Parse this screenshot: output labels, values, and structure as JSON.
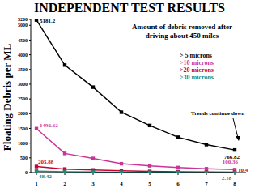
{
  "chart_data": {
    "type": "line",
    "title": "INDEPENDENT TEST RESULTS",
    "y_label": "Floating Debris per ML",
    "annotation": [
      "Amount of debris removed after",
      "driving about 450 miles"
    ],
    "arrow_annotation": "Trends continue down",
    "x": [
      1,
      2,
      3,
      4,
      5,
      6,
      7,
      8
    ],
    "xlim": [
      0.8,
      8.4
    ],
    "xticks": [
      1,
      2,
      3,
      4,
      5,
      6,
      7,
      8
    ],
    "ylim": [
      0,
      5200
    ],
    "yticks": [
      0,
      500,
      1000,
      1500,
      2000,
      2500,
      3000,
      3500,
      4000,
      4500,
      5000,
      5200
    ],
    "grid": false,
    "legend": "top-right",
    "series": [
      {
        "name": "> 5 microns",
        "color": "#000000",
        "marker": "square",
        "values": [
          5181.2,
          3650,
          2900,
          2050,
          1600,
          1200,
          950,
          766.82
        ],
        "value_labels": [
          "5181.2",
          null,
          null,
          null,
          null,
          null,
          null,
          "766.82"
        ]
      },
      {
        "name": ">10 microns",
        "color": "#cc3399",
        "marker": "square",
        "values": [
          1492.62,
          650,
          480,
          300,
          230,
          170,
          130,
          100.36
        ],
        "value_labels": [
          "1492.62",
          null,
          null,
          null,
          null,
          null,
          null,
          "100.36"
        ]
      },
      {
        "name": ">20 microns",
        "color": "#cc0033",
        "marker": "square",
        "values": [
          205.88,
          120,
          90,
          60,
          40,
          30,
          20,
          10.4
        ],
        "value_labels": [
          "205.88",
          null,
          null,
          null,
          null,
          null,
          null,
          "10.4"
        ]
      },
      {
        "name": ">30 microns",
        "color": "#1a8a7a",
        "marker": "square",
        "values": [
          48.42,
          30,
          20,
          10,
          8,
          5,
          3,
          2.18
        ],
        "value_labels": [
          "48.42",
          null,
          null,
          null,
          null,
          null,
          null,
          "2.18"
        ]
      }
    ]
  }
}
